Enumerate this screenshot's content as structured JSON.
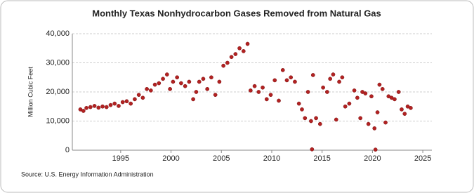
{
  "chart_data": {
    "type": "scatter",
    "title": "Monthly Texas Nonhydrocarbon Gases Removed from Natural Gas",
    "y_label": "Million Cubic Feet",
    "source": "Source: U.S. Energy Information Administration",
    "color": "#b22222",
    "grid": true,
    "xlim": [
      1990.2,
      2025.9
    ],
    "xticks": [
      1995,
      2000,
      2005,
      2010,
      2015,
      2020,
      2025
    ],
    "ylim": [
      0,
      40000
    ],
    "yticks": [
      0,
      {
        "value": 10000,
        "label": "10,000"
      },
      {
        "value": 20000,
        "label": "20,000"
      },
      {
        "value": 30000,
        "label": "30,000"
      },
      {
        "value": 40000,
        "label": "40,000"
      }
    ],
    "x": [
      1991.0,
      1991.3,
      1991.6,
      1992.0,
      1992.4,
      1992.8,
      1993.2,
      1993.6,
      1994.0,
      1994.4,
      1994.8,
      1995.2,
      1995.6,
      1996.0,
      1996.4,
      1996.8,
      1997.2,
      1997.6,
      1998.0,
      1998.4,
      1998.8,
      1999.2,
      1999.6,
      1999.9,
      2000.2,
      2000.6,
      2001.0,
      2001.4,
      2001.8,
      2002.2,
      2002.5,
      2002.8,
      2003.2,
      2003.6,
      2004.0,
      2004.4,
      2004.8,
      2005.2,
      2005.6,
      2006.0,
      2006.4,
      2006.8,
      2007.2,
      2007.6,
      2007.9,
      2008.3,
      2008.7,
      2009.1,
      2009.5,
      2009.9,
      2010.3,
      2010.7,
      2011.1,
      2011.5,
      2011.9,
      2012.3,
      2012.7,
      2013.0,
      2013.3,
      2013.6,
      2013.9,
      2014.0,
      2014.1,
      2014.4,
      2014.8,
      2015.1,
      2015.5,
      2015.8,
      2016.1,
      2016.4,
      2016.7,
      2017.0,
      2017.3,
      2017.7,
      2018.2,
      2018.5,
      2018.8,
      2019.0,
      2019.3,
      2019.6,
      2019.9,
      2020.2,
      2020.3,
      2020.5,
      2020.7,
      2021.0,
      2021.3,
      2021.6,
      2021.9,
      2022.2,
      2022.6,
      2022.9,
      2023.2,
      2023.5,
      2023.8
    ],
    "values": [
      14000,
      13500,
      14500,
      14800,
      15200,
      14600,
      15000,
      14800,
      15500,
      16000,
      15200,
      16500,
      16800,
      16000,
      17500,
      19000,
      18000,
      21000,
      20500,
      22500,
      23000,
      24500,
      26000,
      21000,
      23500,
      25000,
      23000,
      22000,
      23500,
      17500,
      20000,
      23500,
      24500,
      21000,
      25000,
      19000,
      23500,
      29000,
      30000,
      32000,
      33000,
      35000,
      34000,
      36500,
      20500,
      22000,
      20000,
      21500,
      17500,
      19000,
      24000,
      17000,
      27500,
      24000,
      25000,
      23500,
      16000,
      14000,
      11000,
      20000,
      10000,
      300,
      25800,
      11000,
      9000,
      21500,
      20000,
      24500,
      26000,
      10500,
      23500,
      25000,
      15000,
      16000,
      20500,
      18000,
      11000,
      20000,
      19500,
      9000,
      18500,
      7500,
      200,
      13000,
      22500,
      21000,
      9500,
      18500,
      18000,
      17500,
      20000,
      14000,
      12500,
      15000,
      14500
    ]
  }
}
